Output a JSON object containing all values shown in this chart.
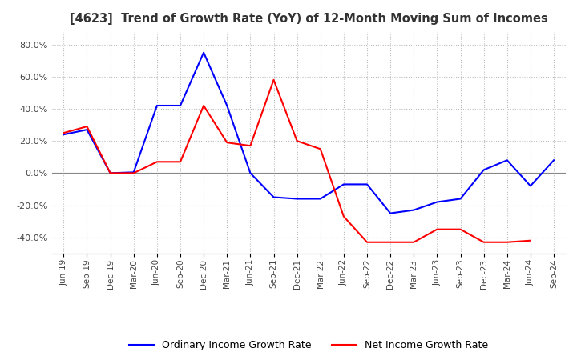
{
  "title": "[4623]  Trend of Growth Rate (YoY) of 12-Month Moving Sum of Incomes",
  "xlabels": [
    "Jun-19",
    "Sep-19",
    "Dec-19",
    "Mar-20",
    "Jun-20",
    "Sep-20",
    "Dec-20",
    "Mar-21",
    "Jun-21",
    "Sep-21",
    "Dec-21",
    "Mar-22",
    "Jun-22",
    "Sep-22",
    "Dec-22",
    "Mar-23",
    "Jun-23",
    "Sep-23",
    "Dec-23",
    "Mar-24",
    "Jun-24",
    "Sep-24"
  ],
  "ordinary_income": [
    24.0,
    27.0,
    0.0,
    0.5,
    42.0,
    42.0,
    75.0,
    42.0,
    0.0,
    -15.0,
    -16.0,
    -16.0,
    -7.0,
    -7.0,
    -25.0,
    -23.0,
    -18.0,
    -16.0,
    2.0,
    8.0,
    -8.0,
    8.0
  ],
  "net_income": [
    25.0,
    29.0,
    0.0,
    0.0,
    7.0,
    7.0,
    42.0,
    19.0,
    17.0,
    58.0,
    20.0,
    15.0,
    -27.0,
    -43.0,
    -43.0,
    -43.0,
    -35.0,
    -35.0,
    -43.0,
    -43.0,
    -42.0,
    null
  ],
  "ylim": [
    -50,
    88
  ],
  "yticks": [
    -40,
    -20,
    0,
    20,
    40,
    60,
    80
  ],
  "ordinary_color": "#0000FF",
  "net_color": "#FF0000",
  "background_color": "#FFFFFF",
  "grid_color": "#BBBBBB",
  "legend_ordinary": "Ordinary Income Growth Rate",
  "legend_net": "Net Income Growth Rate"
}
